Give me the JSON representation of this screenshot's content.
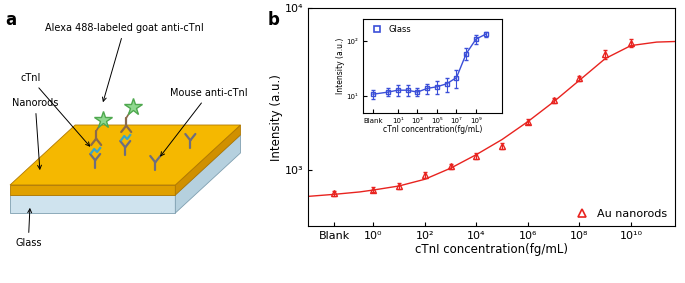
{
  "diagram": {
    "panel_label": "a",
    "detection_antibody": "Alexa 488-labeled goat anti-cTnI",
    "antigen": "cTnI",
    "film": "Nanorods",
    "capture_antibody": "Mouse anti-cTnI",
    "substrate": "Glass"
  },
  "chart_data": [
    {
      "type": "line",
      "panel_label": "b",
      "x_label": "cTnI concentration(fg/mL)",
      "y_label": "Intensity (a.u.)",
      "log": true,
      "xlim": [
        0.003,
        500000000000
      ],
      "ylim": [
        450,
        10000
      ],
      "xticks": [
        {
          "value": 0.03,
          "label": "Blank"
        },
        {
          "value": 1,
          "label": "10⁰"
        },
        {
          "value": 100,
          "label": "10²"
        },
        {
          "value": 10000,
          "label": "10⁴"
        },
        {
          "value": 1000000,
          "label": "10⁶"
        },
        {
          "value": 100000000,
          "label": "10⁸"
        },
        {
          "value": 10000000000,
          "label": "10¹⁰"
        }
      ],
      "yticks": [
        {
          "value": 1000,
          "label": "10³"
        },
        {
          "value": 10000,
          "label": "10⁴"
        }
      ],
      "legend": "lower right",
      "series": [
        {
          "name": "Au nanorods",
          "color": "#e8231f",
          "marker": "triangle",
          "line_style": "none",
          "x": [
            0.03,
            1,
            10,
            100,
            1000,
            10000,
            100000,
            1000000,
            10000000,
            100000000,
            1000000000,
            10000000000
          ],
          "values": [
            720,
            760,
            800,
            940,
            1060,
            1230,
            1420,
            2000,
            2700,
            3700,
            5200,
            6100
          ],
          "errors": [
            30,
            30,
            30,
            40,
            40,
            50,
            60,
            80,
            100,
            150,
            300,
            350
          ]
        },
        {
          "color": "#e8231f",
          "line_style": "solid",
          "x": [
            0.003,
            0.03,
            0.3,
            1,
            10,
            100,
            1000,
            10000,
            100000,
            1000000,
            10000000,
            100000000,
            1000000000,
            10000000000,
            100000000000,
            500000000000
          ],
          "values": [
            690,
            710,
            735,
            755,
            800,
            880,
            1030,
            1250,
            1550,
            2000,
            2650,
            3600,
            4900,
            5900,
            6200,
            6250
          ]
        }
      ]
    },
    {
      "type": "line",
      "x_label": "cTnI concentration(fg/mL)",
      "y_label": "Intensity (a.u.)",
      "log": true,
      "xlim": [
        0.003,
        500000000000
      ],
      "ylim": [
        5,
        250
      ],
      "xticks": [
        {
          "value": 0.03,
          "label": "Blank"
        },
        {
          "value": 10,
          "label": "10¹"
        },
        {
          "value": 1000,
          "label": "10³"
        },
        {
          "value": 100000,
          "label": "10⁵"
        },
        {
          "value": 10000000,
          "label": "10⁷"
        },
        {
          "value": 1000000000,
          "label": "10⁹"
        }
      ],
      "yticks": [
        {
          "value": 10,
          "label": "10¹"
        },
        {
          "value": 100,
          "label": "10²"
        }
      ],
      "legend": "upper left",
      "series": [
        {
          "name": "Glass",
          "color": "#3b4fd8",
          "marker": "square",
          "line_style": "solid",
          "x": [
            0.03,
            1,
            10,
            100,
            1000,
            10000,
            100000,
            1000000,
            10000000,
            100000000,
            1000000000,
            10000000000
          ],
          "values": [
            11,
            12,
            13,
            13,
            12,
            14,
            15,
            17,
            22,
            60,
            110,
            135
          ],
          "errors": [
            2,
            2,
            3,
            3,
            2,
            3,
            4,
            5,
            8,
            15,
            20,
            15
          ]
        }
      ]
    }
  ]
}
